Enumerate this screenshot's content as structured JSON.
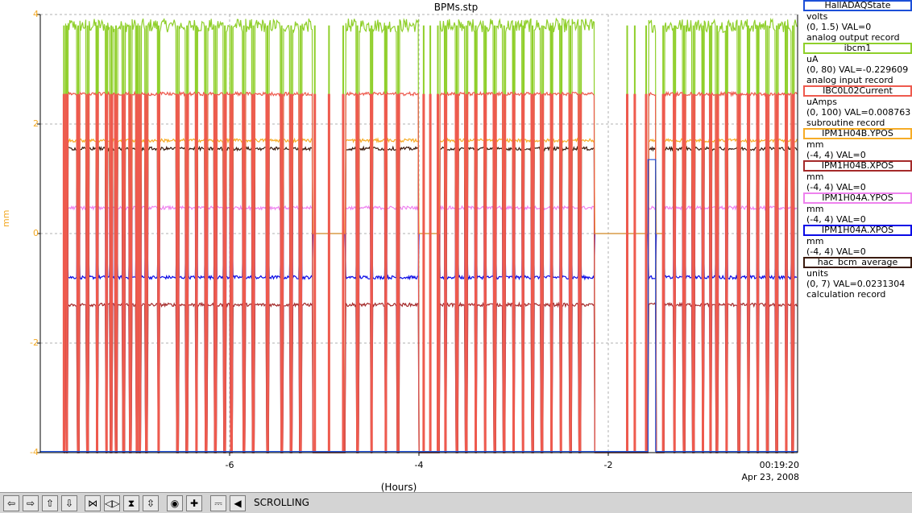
{
  "window": {
    "title": "BPMs.stp"
  },
  "chart_data": {
    "type": "line",
    "title": "BPMs.stp",
    "xlabel": "(Hours)",
    "ylabel": "mm",
    "xlim": [
      -8.0,
      0.0
    ],
    "ylim": [
      -4,
      4
    ],
    "yticks": [
      4,
      2,
      0,
      -2,
      -4
    ],
    "xticks": [
      -6,
      -4,
      -2
    ],
    "x_end_label": "00:19:20",
    "x_end_date": "Apr 23, 2008",
    "grid": true,
    "series": [
      {
        "name": "HallADAQState",
        "units": "volts",
        "range": "(0, 1.5)",
        "value": "VAL=0",
        "record": "analog output record",
        "color": "#1c4fd8",
        "baseline": -4,
        "style": "step"
      },
      {
        "name": "ibcm1",
        "units": "uA",
        "range": "(0, 80)",
        "value": "VAL=-0.229609",
        "record": "analog input record",
        "color": "#8fcf2a",
        "baseline": 3.8,
        "style": "noisy"
      },
      {
        "name": "IBC0L02Current",
        "units": "uAmps",
        "range": "(0, 100)",
        "value": "VAL=0.008763",
        "record": "subroutine record",
        "color": "#ee5a4e",
        "baseline": 2.55,
        "style": "noisy"
      },
      {
        "name": "IPM1H04B.YPOS",
        "units": "mm",
        "range": "(-4, 4)",
        "value": "VAL=0",
        "record": "",
        "color": "#f6ac26",
        "baseline": 1.7,
        "style": "noisy"
      },
      {
        "name": "IPM1H04B.XPOS",
        "units": "mm",
        "range": "(-4, 4)",
        "value": "VAL=0",
        "record": "",
        "color": "#a42a2a",
        "baseline": -1.3,
        "style": "noisy"
      },
      {
        "name": "IPM1H04A.YPOS",
        "units": "mm",
        "range": "(-4, 4)",
        "value": "VAL=0",
        "record": "",
        "color": "#ee82ee",
        "baseline": 0.47,
        "style": "noisy"
      },
      {
        "name": "IPM1H04A.XPOS",
        "units": "mm",
        "range": "(-4, 4)",
        "value": "VAL=0",
        "record": "",
        "color": "#0a0ae6",
        "baseline": -0.8,
        "style": "noisy"
      },
      {
        "name": "hac_bcm_average",
        "units": "units",
        "range": "(0, 7)",
        "value": "VAL=0.0231304",
        "record": "calculation record",
        "color": "#3a1b0e",
        "baseline": 1.55,
        "style": "noisy"
      }
    ],
    "beam_trips_hours": [
      -7.75,
      -7.72,
      -7.6,
      -7.5,
      -7.4,
      -7.3,
      -7.25,
      -7.2,
      -7.12,
      -7.05,
      -6.98,
      -6.95,
      -6.88,
      -6.75,
      -6.55,
      -6.45,
      -6.35,
      -6.25,
      -6.15,
      -6.05,
      -5.98,
      -5.85,
      -5.75,
      -5.6,
      -5.45,
      -5.35,
      -5.25,
      -5.1,
      -4.95,
      -4.8,
      -4.65,
      -4.5,
      -4.35,
      -4.22,
      -3.95,
      -3.88,
      -3.8,
      -3.72,
      -3.6,
      -3.5,
      -3.4,
      -3.3,
      -3.2,
      -3.1,
      -3.0,
      -2.9,
      -2.8,
      -2.7,
      -2.6,
      -2.5,
      -2.4,
      -2.3,
      -1.8,
      -1.72,
      -1.6,
      -1.42,
      -1.3,
      -1.2,
      -1.1,
      -1.0,
      -0.92,
      -0.85,
      -0.75,
      -0.62,
      -0.52,
      -0.42,
      -0.32,
      -0.22,
      -0.12,
      -0.05
    ],
    "beam_off_intervals_hours": [
      [
        -5.12,
        -4.78
      ],
      [
        -4.0,
        -3.78
      ],
      [
        -2.15,
        -1.58
      ],
      [
        -1.5,
        -1.42
      ]
    ]
  },
  "toolbar": {
    "buttons": [
      {
        "name": "scroll-left",
        "glyph": "⇦"
      },
      {
        "name": "scroll-right",
        "glyph": "⇨"
      },
      {
        "name": "scroll-up",
        "glyph": "⇧"
      },
      {
        "name": "scroll-down",
        "glyph": "⇩"
      },
      {
        "name": "zoom-in-x",
        "glyph": "⋈"
      },
      {
        "name": "zoom-out-x",
        "glyph": "◁▷"
      },
      {
        "name": "zoom-in-y",
        "glyph": "⧗"
      },
      {
        "name": "zoom-out-y",
        "glyph": "⇳"
      },
      {
        "name": "auto-scale",
        "glyph": "◉"
      },
      {
        "name": "add",
        "glyph": "✚"
      },
      {
        "name": "print",
        "glyph": "⎓"
      },
      {
        "name": "back",
        "glyph": "◀"
      }
    ],
    "status": "SCROLLING"
  }
}
